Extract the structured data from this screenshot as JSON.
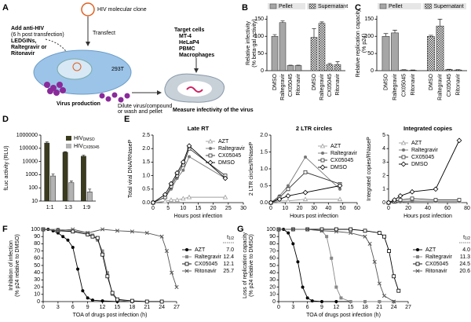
{
  "panel_a": {
    "panel": "A",
    "clone": "HIV molecular clone",
    "transfect": "Transfect",
    "treatment": [
      "Add anti-HIV",
      "(6 h post transfection)",
      "LEDGINs,",
      "Raltegravir or",
      "Ritonavir"
    ],
    "producer": "293T",
    "production": "Virus production",
    "dilute": [
      "Dilute virus/compound",
      "or wash and pellet"
    ],
    "targets": [
      "Target cells",
      "MT-4",
      "HeLaP4",
      "PBMC",
      "Macrophages"
    ],
    "measure": "Measure infectivity of the virus"
  },
  "chart_data": [
    {
      "type": "bar",
      "panel": "B",
      "ylabel": [
        "Relative infectivity",
        "(% beta-gal activity)"
      ],
      "group_by": "series",
      "categories": [
        "DMSO",
        "Raltegravir",
        "CX05045",
        "Ritonavir"
      ],
      "series": [
        {
          "name": "Pellet",
          "color": "#a6a6a6",
          "values": [
            100,
            140,
            15,
            15
          ],
          "errors": [
            5,
            5,
            1,
            1
          ]
        },
        {
          "name": "Supernatant",
          "color": "#444444",
          "pattern": "checker",
          "values": [
            97,
            138,
            18,
            18
          ],
          "errors": [
            25,
            4,
            3,
            8
          ]
        }
      ],
      "ylim": [
        0,
        160
      ],
      "yticks": [
        0,
        50,
        100,
        150
      ]
    },
    {
      "type": "bar",
      "panel": "C",
      "ylabel": [
        "Relative replication capacity",
        "(% p24)"
      ],
      "group_by": "series",
      "categories": [
        "DMSO",
        "Raltegravir",
        "CX05045",
        "Ritonavir"
      ],
      "series": [
        {
          "name": "Pellet",
          "color": "#a6a6a6",
          "values": [
            100,
            110,
            2,
            1
          ],
          "errors": [
            8,
            8,
            1,
            1
          ]
        },
        {
          "name": "Supernatant",
          "color": "#444444",
          "pattern": "checker",
          "values": [
            100,
            130,
            3,
            2
          ],
          "errors": [
            3,
            20,
            1,
            1
          ]
        }
      ],
      "ylim": [
        0,
        160
      ],
      "yticks": [
        0,
        50,
        100,
        150
      ]
    },
    {
      "type": "bar",
      "panel": "D",
      "ylabel": "fLuc activity (RLU)",
      "group_by": "category",
      "log": true,
      "categories": [
        "1:1",
        "1:3",
        "1:9"
      ],
      "series": [
        {
          "name": "HIV",
          "name_sub": "DMSO",
          "color": "#3b3b1e",
          "values": [
            250000,
            50000,
            25000
          ],
          "errors": [
            50000,
            5000,
            5000
          ]
        },
        {
          "name": "HIV",
          "name_sub": "CX05045",
          "color": "#b3b3b3",
          "values": [
            800,
            250,
            50
          ],
          "errors": [
            300,
            80,
            30
          ]
        }
      ],
      "ylim": [
        10,
        1000000
      ],
      "yticks": [
        10,
        100,
        1000,
        10000,
        100000,
        1000000
      ]
    },
    {
      "type": "line",
      "panel": "E",
      "title": "Late RT",
      "ylabel": "Total viral DNA/RNaseP",
      "xlabel": "Hours post infection",
      "x": [
        0,
        4,
        6,
        8,
        10,
        12,
        24
      ],
      "series": [
        {
          "name": "AZT",
          "color": "#a0a0a0",
          "marker": "triangle",
          "values": [
            0,
            0.05,
            0.1,
            0.1,
            0.15,
            0.2,
            0.2
          ]
        },
        {
          "name": "Raltegravir",
          "color": "#777777",
          "marker": "circle",
          "values": [
            0,
            0.2,
            0.5,
            0.9,
            1.2,
            1.7,
            0.9
          ]
        },
        {
          "name": "CX05045",
          "color": "#333333",
          "marker": "square-open",
          "values": [
            0,
            0.2,
            0.6,
            1.0,
            1.4,
            2.0,
            1.0
          ]
        },
        {
          "name": "DMSO",
          "color": "#000000",
          "marker": "diamond-open",
          "values": [
            0,
            0.3,
            0.7,
            1.1,
            1.5,
            2.1,
            0.9
          ]
        }
      ],
      "xlim": [
        0,
        30
      ],
      "xticks": [
        0,
        5,
        10,
        15,
        20,
        25,
        30
      ],
      "ylim": [
        0,
        2.5
      ],
      "yticks": [
        {
          "value": 0,
          "label": "0.0"
        },
        {
          "value": 0.5,
          "label": "0.5"
        },
        {
          "value": 1,
          "label": "1.0"
        },
        {
          "value": 1.5,
          "label": "1.5"
        },
        {
          "value": 2,
          "label": "2.0"
        },
        {
          "value": 2.5,
          "label": "2.5"
        }
      ]
    },
    {
      "type": "line",
      "title": "2 LTR circles",
      "ylabel": "2 LTR circles/RNaseP",
      "xlabel": "Hours post infection",
      "x": [
        0,
        6,
        12,
        24,
        48
      ],
      "series": [
        {
          "name": "AZT",
          "color": "#a0a0a0",
          "marker": "triangle",
          "values": [
            0,
            0.05,
            0.05,
            0.1,
            0.1
          ]
        },
        {
          "name": "Raltegravir",
          "color": "#777777",
          "marker": "circle",
          "values": [
            0,
            0.2,
            0.5,
            1.35,
            0.4
          ]
        },
        {
          "name": "CX05045",
          "color": "#333333",
          "marker": "square-open",
          "values": [
            0,
            0.15,
            0.4,
            0.9,
            0.55
          ]
        },
        {
          "name": "DMSO",
          "color": "#000000",
          "marker": "diamond-open",
          "values": [
            0,
            0.1,
            0.2,
            0.3,
            0.5
          ]
        }
      ],
      "xlim": [
        0,
        60
      ],
      "xticks": [
        0,
        10,
        20,
        30,
        40,
        50,
        60
      ],
      "ylim": [
        0,
        2
      ],
      "yticks": [
        {
          "value": 0,
          "label": "0.0"
        },
        {
          "value": 0.5,
          "label": "0.5"
        },
        {
          "value": 1,
          "label": "1.0"
        },
        {
          "value": 1.5,
          "label": "1.5"
        },
        {
          "value": 2,
          "label": "2.0"
        }
      ]
    },
    {
      "type": "line",
      "title": "Integrated copies",
      "ylabel": "Integrated copies/RNaseP",
      "xlabel": "Hours post infection",
      "x": [
        0,
        6,
        12,
        24,
        48,
        72
      ],
      "series": [
        {
          "name": "AZT",
          "color": "#a0a0a0",
          "marker": "triangle",
          "values": [
            0,
            0.05,
            0.1,
            0.15,
            0.1,
            0.1
          ]
        },
        {
          "name": "Raltegravir",
          "color": "#777777",
          "marker": "circle",
          "values": [
            0,
            0.05,
            0.05,
            0.1,
            0.1,
            0.1
          ]
        },
        {
          "name": "CX05045",
          "color": "#333333",
          "marker": "square-open",
          "values": [
            0,
            0.1,
            0.2,
            0.3,
            0.2,
            0.2
          ]
        },
        {
          "name": "DMSO",
          "color": "#000000",
          "marker": "diamond-open",
          "values": [
            0,
            0.2,
            0.5,
            0.8,
            1.0,
            4.6
          ]
        }
      ],
      "xlim": [
        0,
        80
      ],
      "xticks": [
        0,
        20,
        40,
        60,
        80
      ],
      "ylim": [
        0,
        5
      ],
      "yticks": [
        0,
        1,
        2,
        3,
        4,
        5
      ]
    },
    {
      "type": "line",
      "panel": "F",
      "ylabel": [
        "Inhibition of infection",
        "(% p24 relative to DMSO)"
      ],
      "xlabel": "TOA of drugs post infection (h)",
      "series": [
        {
          "name": "AZT",
          "color": "#000000",
          "marker": "circle",
          "x": [
            0,
            1,
            2,
            3,
            4,
            5,
            6,
            7,
            8,
            9,
            10,
            12,
            15,
            18,
            21,
            24
          ],
          "values": [
            100,
            100,
            98,
            95,
            90,
            85,
            75,
            45,
            15,
            5,
            2,
            1,
            0,
            0,
            0,
            0
          ]
        },
        {
          "name": "Raltegravir",
          "color": "#888888",
          "marker": "square",
          "x": [
            0,
            3,
            6,
            9,
            10,
            11,
            12,
            13,
            14,
            15,
            18,
            21,
            24
          ],
          "values": [
            100,
            100,
            98,
            95,
            92,
            85,
            70,
            40,
            10,
            2,
            0,
            0,
            0
          ]
        },
        {
          "name": "CX05045",
          "color": "#000000",
          "marker": "square-open",
          "x": [
            0,
            3,
            6,
            9,
            10,
            11,
            12,
            13,
            14,
            15,
            18,
            21,
            24
          ],
          "values": [
            100,
            98,
            97,
            93,
            90,
            88,
            65,
            35,
            12,
            3,
            1,
            0,
            0
          ]
        },
        {
          "name": "Ritonavir",
          "color": "#555555",
          "marker": "x",
          "x": [
            0,
            3,
            6,
            9,
            12,
            15,
            18,
            21,
            24,
            25,
            26,
            27
          ],
          "values": [
            100,
            98,
            100,
            95,
            100,
            98,
            97,
            95,
            90,
            70,
            40,
            20
          ]
        }
      ],
      "t_half": {
        "title": "t",
        "title_sub": "1/2",
        "values": [
          7,
          12.4,
          12.1,
          25.7
        ],
        "value_labels": [
          "7.0",
          "12.4",
          "12.1",
          "25.7"
        ]
      },
      "xlim": [
        0,
        27
      ],
      "xticks": [
        0,
        3,
        6,
        9,
        12,
        15,
        18,
        21,
        24,
        27
      ],
      "ylim": [
        0,
        100
      ],
      "yticks": [
        0,
        10,
        20,
        30,
        40,
        50,
        60,
        70,
        80,
        90,
        100
      ]
    },
    {
      "type": "line",
      "panel": "G",
      "ylabel": [
        "Loss of replication capacity",
        "(% p24 relative to DMSO)"
      ],
      "xlabel": "TOA of drugs post infection (h)",
      "series": [
        {
          "name": "AZT",
          "color": "#000000",
          "marker": "circle",
          "x": [
            0,
            1,
            2,
            3,
            4,
            5,
            6,
            7,
            9,
            12,
            15,
            18,
            21,
            24
          ],
          "values": [
            100,
            100,
            95,
            80,
            55,
            20,
            5,
            1,
            0,
            0,
            0,
            0,
            0,
            0
          ]
        },
        {
          "name": "Raltegravir",
          "color": "#888888",
          "marker": "square",
          "x": [
            0,
            3,
            6,
            9,
            10,
            11,
            12,
            13,
            15,
            18,
            21,
            24
          ],
          "values": [
            100,
            100,
            100,
            98,
            90,
            60,
            20,
            5,
            0,
            0,
            0,
            0
          ]
        },
        {
          "name": "CX05045",
          "color": "#000000",
          "marker": "square-open",
          "x": [
            0,
            3,
            6,
            9,
            12,
            15,
            18,
            21,
            22,
            23,
            24,
            25
          ],
          "values": [
            100,
            100,
            100,
            100,
            100,
            100,
            98,
            95,
            90,
            70,
            35,
            15
          ]
        },
        {
          "name": "Ritonavir",
          "color": "#555555",
          "marker": "x",
          "x": [
            0,
            3,
            6,
            9,
            12,
            15,
            18,
            19,
            20,
            21,
            22,
            24
          ],
          "values": [
            100,
            100,
            100,
            98,
            97,
            95,
            90,
            80,
            55,
            25,
            8,
            0
          ]
        }
      ],
      "t_half": {
        "title": "t",
        "title_sub": "1/2",
        "values": [
          4,
          11.3,
          24.5,
          20.6
        ],
        "value_labels": [
          "4.0",
          "11.3",
          "24.5",
          "20.6"
        ]
      },
      "xlim": [
        0,
        27
      ],
      "xticks": [
        0,
        3,
        6,
        9,
        12,
        15,
        18,
        21,
        24,
        27
      ],
      "ylim": [
        0,
        100
      ],
      "yticks": [
        0,
        10,
        20,
        30,
        40,
        50,
        60,
        70,
        80,
        90,
        100
      ]
    }
  ]
}
